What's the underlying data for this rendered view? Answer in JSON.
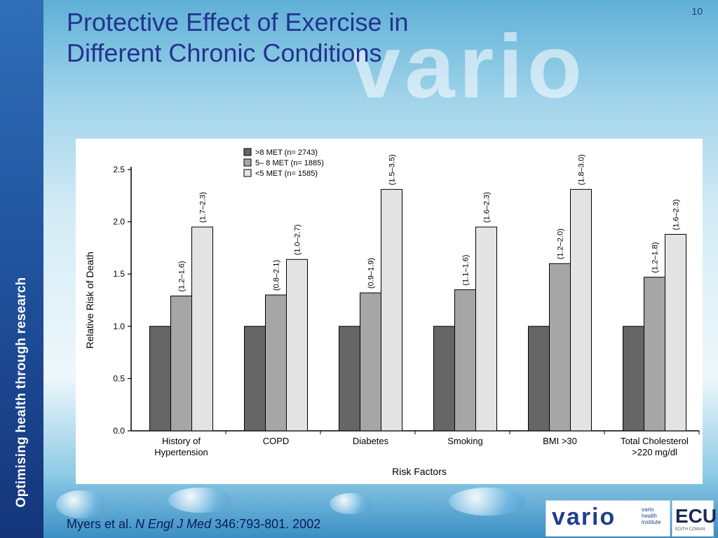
{
  "slide": {
    "title_line1": "Protective Effect of Exercise in",
    "title_line2": "Different Chronic Conditions",
    "slide_number": "10",
    "sidebar_text": "Optimising health through research",
    "background_word": "vario",
    "citation": {
      "authors": "Myers et al. ",
      "journal": "N Engl J Med",
      "reference": " 346:793-801. 2002"
    },
    "logo": {
      "word": "vario",
      "sub_line1": "vario",
      "sub_line2": "health",
      "sub_line3": "institute"
    },
    "ecu_logo": {
      "word": "ECU",
      "sub": "EDITH COWAN"
    }
  },
  "chart_data": {
    "type": "bar",
    "categories": [
      "History of\nHypertension",
      "COPD",
      "Diabetes",
      "Smoking",
      "BMI >30",
      "Total Cholesterol\n>220 mg/dl"
    ],
    "series": [
      {
        "name": ">8 MET (n= 2743)",
        "values": [
          1.0,
          1.0,
          1.0,
          1.0,
          1.0,
          1.0
        ],
        "color": "#666666"
      },
      {
        "name": "5– 8 MET (n= 1885)",
        "values": [
          1.29,
          1.3,
          1.32,
          1.35,
          1.6,
          1.47
        ],
        "color": "#a6a6a6"
      },
      {
        "name": "<5 MET (n= 1585)",
        "values": [
          1.95,
          1.64,
          2.31,
          1.95,
          2.31,
          1.88
        ],
        "color": "#e3e3e3"
      }
    ],
    "ci_labels": [
      [
        "",
        "(1.2–1.6)",
        "(1.7–2.3)"
      ],
      [
        "",
        "(0.8–2.1)",
        "(1.0–2.7)"
      ],
      [
        "",
        "(0.9–1.9)",
        "(1.5–3.5)"
      ],
      [
        "",
        "(1.1–1.6)",
        "(1.6–2.3)"
      ],
      [
        "",
        "(1.2–2.0)",
        "(1.8–3.0)"
      ],
      [
        "",
        "(1.2–1.8)",
        "(1.6–2.3)"
      ]
    ],
    "yticks": [
      "0.0",
      "0.5",
      "1.0",
      "1.5",
      "2.0",
      "2.5"
    ],
    "ylim": [
      0,
      2.5
    ],
    "xlabel": "Risk Factors",
    "ylabel": "Relative Risk of Death",
    "legend_position": "top-center",
    "grid": false
  }
}
